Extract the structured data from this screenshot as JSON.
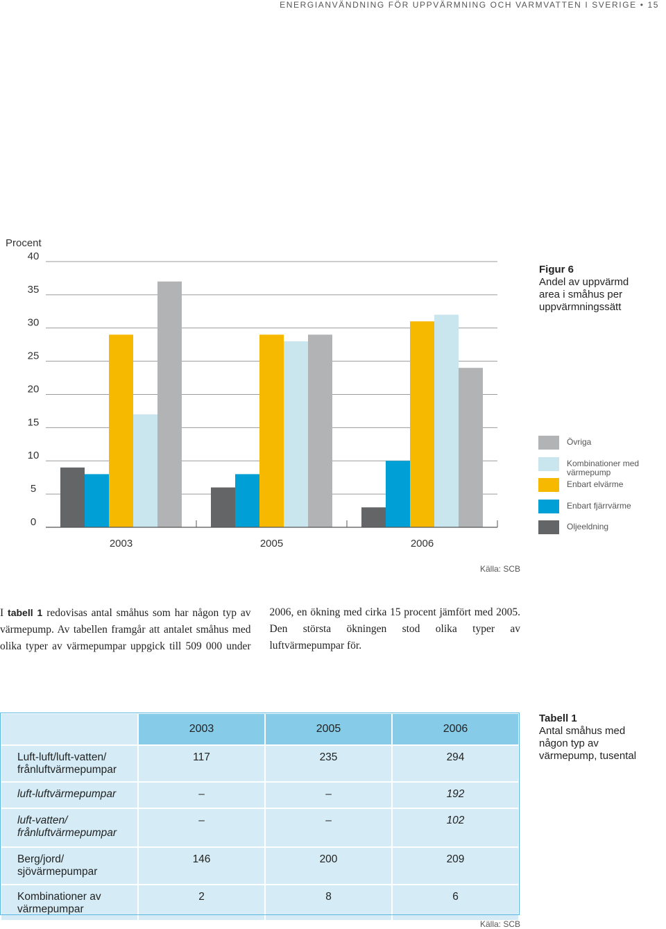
{
  "header": {
    "title": "ENERGIANVÄNDNING FÖR UPPVÄRMNING OCH VARMVATTEN I SVERIGE",
    "page_number": 15
  },
  "chart_data": {
    "type": "bar",
    "title": "Figur 6",
    "subtitle": "Andel av uppvärmd area i småhus per uppvärmningssätt",
    "y_label": "Procent",
    "source": "Källa: SCB",
    "categories": [
      "2003",
      "2005",
      "2006"
    ],
    "series": [
      {
        "name": "Oljeeldning",
        "color": "#646567",
        "values": [
          9,
          6,
          3
        ]
      },
      {
        "name": "Enbart fjärrvärme",
        "color": "#009fd6",
        "values": [
          8,
          8,
          10
        ]
      },
      {
        "name": "Enbart elvärme",
        "color": "#f7b900",
        "values": [
          29,
          29,
          31
        ]
      },
      {
        "name": "Kombinationer med värmepump",
        "color": "#c9e6ef",
        "values": [
          17,
          28,
          32
        ]
      },
      {
        "name": "Övriga",
        "color": "#b2b3b5",
        "values": [
          37,
          29,
          24
        ]
      }
    ],
    "ylim": [
      0,
      40
    ],
    "yticks": [
      0,
      5,
      10,
      15,
      20,
      25,
      30,
      35,
      40
    ],
    "grid": true
  },
  "body_text": {
    "intro": "I ",
    "ref": "tabell 1",
    "text": " redovisas antal småhus som har någon typ av värmepump. Av tabellen framgår att antalet småhus med olika typer av värmepumpar uppgick till 509 000 under 2006, en ökning med cirka 15 procent jämfört med 2005. Den största ökningen stod olika typer av luftvärmepumpar för."
  },
  "table": {
    "title": "Tabell 1",
    "subtitle": "Antal småhus med någon typ av värmepump, tusental",
    "columns": [
      "2003",
      "2005",
      "2006"
    ],
    "rows": [
      {
        "label": "Luft-luft/luft-vatten/ frånluftvärmepumpar",
        "values": [
          117,
          235,
          294
        ]
      },
      {
        "label": "luft-luftvärmepumpar",
        "values": [
          "–",
          "–",
          192
        ]
      },
      {
        "label": "luft-vatten/ frånluftvärmepumpar",
        "values": [
          "–",
          "–",
          102
        ]
      },
      {
        "label": "Berg/jord/ sjövärmepumpar",
        "values": [
          146,
          200,
          209
        ]
      },
      {
        "label": "Kombinationer av värmepumpar",
        "values": [
          2,
          8,
          6
        ]
      }
    ],
    "source": "Källa: SCB"
  }
}
